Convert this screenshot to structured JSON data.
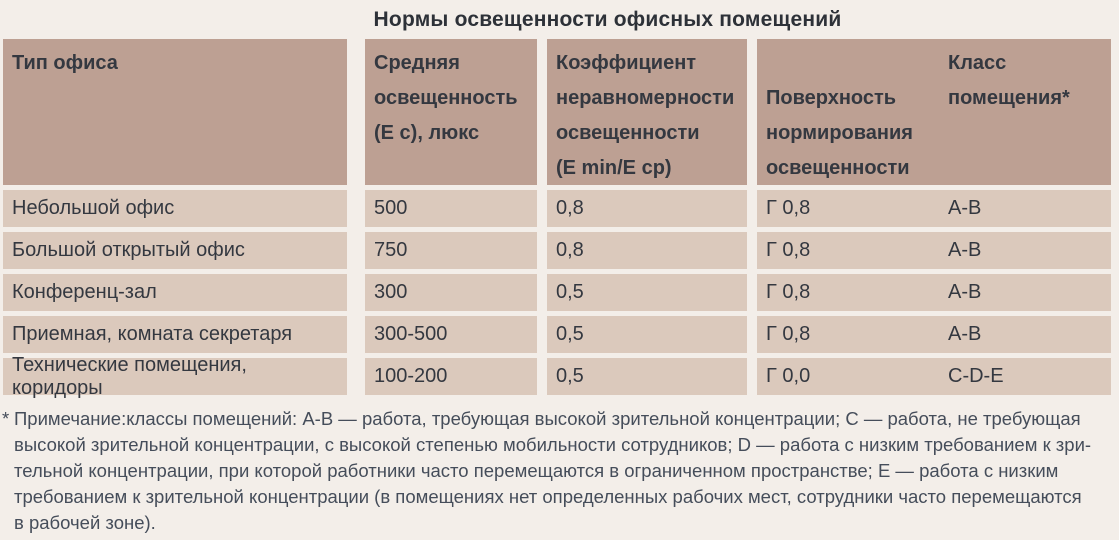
{
  "title": "Нормы освещенности офисных помещений",
  "colors": {
    "page_bg": "#f3eee9",
    "header_bg": "#bda093",
    "row_bg": "#dbc9bc",
    "cell_text": "#343840",
    "title_text": "#2d3138",
    "footnote_text": "#454d5a"
  },
  "table": {
    "headers": [
      "Тип офиса",
      "Средняя\nосвещенность\n(Е с), люкс",
      "Коэффициент\nнеравномерности\nосвещенности\n(Е min/Е ср)",
      "Поверхность\nнормирования\nосвещенности",
      "Класс\nпомещения*"
    ],
    "rows": [
      [
        "Небольшой офис",
        "500",
        "0,8",
        "Г 0,8",
        "А-В"
      ],
      [
        "Большой открытый офис",
        "750",
        "0,8",
        "Г 0,8",
        "А-В"
      ],
      [
        "Конференц-зал",
        "300",
        "0,5",
        "Г 0,8",
        "А-В"
      ],
      [
        "Приемная, комната секретаря",
        "300-500",
        "0,5",
        "Г 0,8",
        "А-В"
      ],
      [
        "Технические помещения, коридоры",
        "100-200",
        "0,5",
        "Г 0,0",
        "C-D-E"
      ]
    ]
  },
  "footnote": {
    "marker": "*",
    "lines": [
      "Примечание:классы помещений: А-В — работа, требующая высокой зрительной концентрации; С — работа, не требующая",
      "высокой зрительной концентрации, с высокой степенью мобильности сотрудников; D — работа с низким требованием к зри-",
      "тельной концентрации, при которой работники часто перемещаются в ограниченном пространстве; Е — работа с низким",
      "требованием к зрительной концентрации (в помещениях нет определенных рабочих мест, сотрудники часто перемещаются",
      "в рабочей зоне)."
    ]
  }
}
